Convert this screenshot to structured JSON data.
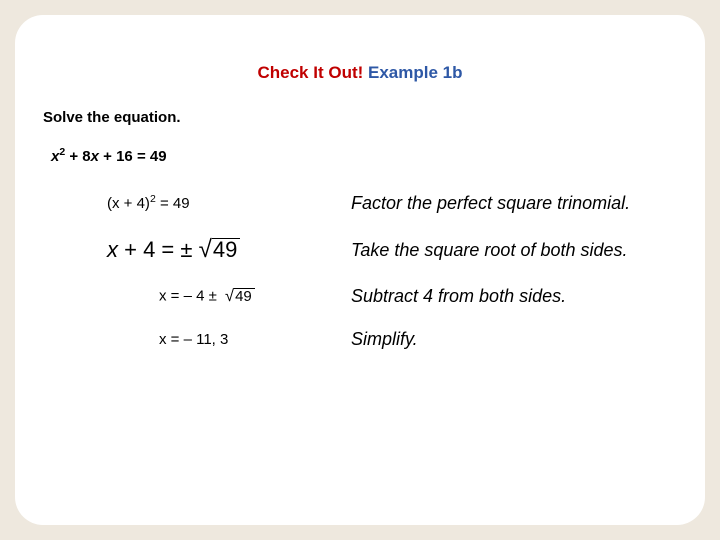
{
  "colors": {
    "background": "#eee8de",
    "slide_bg": "#ffffff",
    "red": "#c00000",
    "blue": "#2e58a6",
    "text": "#000000"
  },
  "title": {
    "red_part": "Check It Out! ",
    "blue_part": "Example 1b"
  },
  "instruction": "Solve the equation.",
  "equation": {
    "full_plain": "x2 + 8x + 16 = 49",
    "var": "x",
    "coeff_b": "8",
    "coeff_c": "16",
    "rhs": "49"
  },
  "steps": [
    {
      "lhs_plain": "(x + 4)2 = 49",
      "explanation": "Factor the perfect square trinomial."
    },
    {
      "lhs_plain": "x + 4 = ± √49",
      "sqrt_arg": "49",
      "explanation": "Take the square root of both sides."
    },
    {
      "lhs_plain": "x = – 4 ±",
      "lhs_prefix": "x",
      "lhs_text": " = – 4 ± ",
      "sqrt_arg": "49",
      "explanation": "Subtract 4 from both sides."
    },
    {
      "lhs_plain": "x = – 11, 3",
      "lhs_prefix": "x",
      "lhs_text": " = – 11, 3",
      "explanation": "Simplify."
    }
  ]
}
